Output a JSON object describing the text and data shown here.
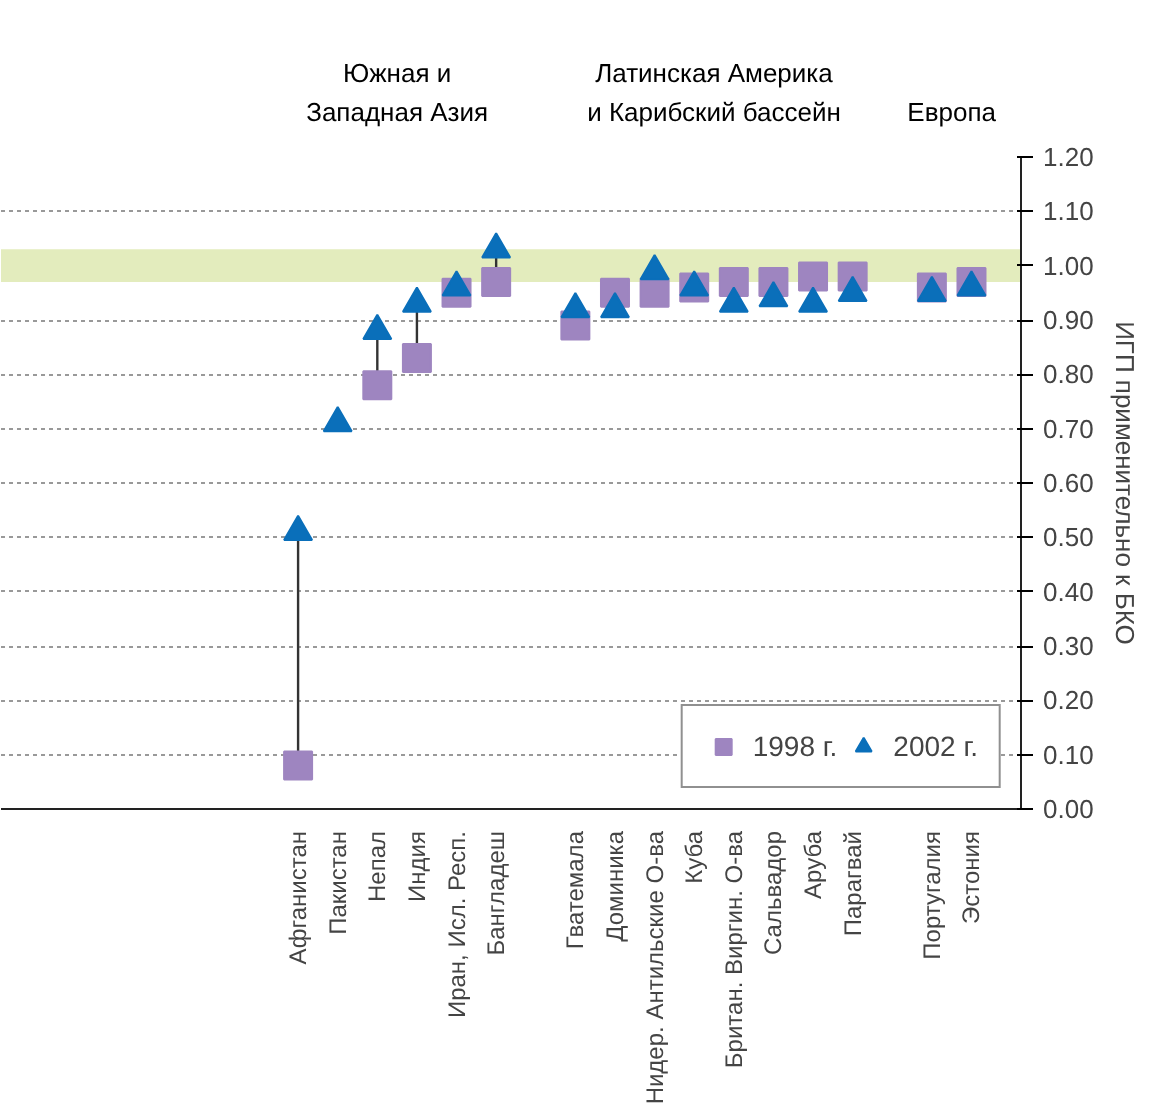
{
  "chart_data": {
    "type": "scatter",
    "ylabel": "ИГП применительно к БКО",
    "annotations": [
      "Южная и\nЗападная Азия",
      "Латинская Америка\nи Карибский бассейн",
      "Европа"
    ],
    "categories": [
      null,
      null,
      null,
      null,
      null,
      null,
      null,
      "Афганистан",
      "Пакистан",
      "Непал",
      "Индия",
      "Иран, Исл. Респ.",
      "Бангладеш",
      null,
      "Гватемала",
      "Доминика",
      "Нидер. Антильские О-ва",
      "Куба",
      "Британ. Виргин. О-ва",
      "Сальвадор",
      "Аруба",
      "Парагвай",
      null,
      "Португалия",
      "Эстония"
    ],
    "series": [
      {
        "name": "1998 г.",
        "color": "#9e85c0",
        "marker": "square",
        "values": [
          null,
          null,
          null,
          null,
          null,
          null,
          null,
          0.08,
          null,
          0.78,
          0.83,
          0.95,
          0.97,
          null,
          0.89,
          0.95,
          0.95,
          0.96,
          0.97,
          0.97,
          0.98,
          0.98,
          null,
          0.96,
          0.97
        ]
      },
      {
        "name": "2002 г.",
        "color": "#0a6fba",
        "marker": "triangle",
        "values": [
          null,
          null,
          null,
          null,
          null,
          null,
          null,
          0.51,
          0.71,
          0.88,
          0.93,
          0.96,
          1.03,
          null,
          0.92,
          0.92,
          0.99,
          0.96,
          0.93,
          0.94,
          0.93,
          0.95,
          null,
          0.95,
          0.96
        ]
      }
    ],
    "ylim": [
      0,
      1.2
    ],
    "yticks": [
      {
        "value": 0,
        "label": "0.00"
      },
      {
        "value": 0.1,
        "label": "0.10"
      },
      {
        "value": 0.2,
        "label": "0.20"
      },
      {
        "value": 0.3,
        "label": "0.30"
      },
      {
        "value": 0.4,
        "label": "0.40"
      },
      {
        "value": 0.5,
        "label": "0.50"
      },
      {
        "value": 0.6,
        "label": "0.60"
      },
      {
        "value": 0.7,
        "label": "0.70"
      },
      {
        "value": 0.8,
        "label": "0.80"
      },
      {
        "value": 0.9,
        "label": "0.90"
      },
      {
        "value": 1.0,
        "label": "1.00"
      },
      {
        "value": 1.1,
        "label": "1.10"
      },
      {
        "value": 1.2,
        "label": "1.20"
      }
    ],
    "bands": [
      {
        "axis": "y",
        "from": 0.97,
        "to": 1.03,
        "color": "#e3ecbd"
      }
    ],
    "grid": "y",
    "legend": "bottom right"
  }
}
